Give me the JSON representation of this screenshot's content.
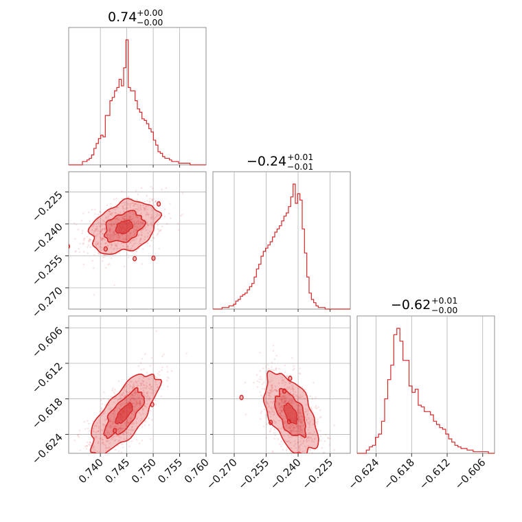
{
  "chart_data": {
    "type": "corner",
    "color": "#d62728",
    "parameters": [
      {
        "title": {
          "value": "0.74",
          "plus": "+0.00",
          "minus": "−0.00"
        },
        "range": [
          0.734,
          0.76
        ],
        "ticks": [
          0.74,
          0.745,
          0.75,
          0.755,
          0.76
        ],
        "tick_labels": [
          "0.740",
          "0.745",
          "0.750",
          "0.755",
          "0.760"
        ],
        "hist_edges": [
          0.734,
          0.76
        ],
        "hist": [
          0,
          0,
          0,
          0,
          0,
          0,
          2,
          2,
          3,
          4,
          6,
          10,
          13,
          16,
          18,
          17,
          30,
          30,
          39,
          41,
          45,
          47,
          52,
          48,
          59,
          76,
          47,
          45,
          45,
          39,
          34,
          32,
          28,
          27,
          25,
          22,
          20,
          15,
          12,
          8,
          7,
          5,
          4,
          4,
          3,
          2,
          2,
          2,
          1,
          1,
          1,
          1,
          1,
          0,
          0,
          0,
          0,
          0,
          0,
          0
        ]
      },
      {
        "title": {
          "value": "−0.24",
          "plus": "+0.01",
          "minus": "−0.01"
        },
        "range": [
          -0.28,
          -0.2155
        ],
        "ticks": [
          -0.27,
          -0.255,
          -0.24,
          -0.225
        ],
        "tick_labels": [
          "−0.270",
          "−0.255",
          "−0.240",
          "−0.225"
        ],
        "hist": [
          0,
          0,
          0,
          0,
          1,
          1,
          1,
          2,
          2,
          3,
          5,
          6,
          8,
          9,
          10,
          12,
          14,
          16,
          20,
          25,
          28,
          33,
          36,
          38,
          40,
          42,
          45,
          48,
          50,
          52,
          55,
          58,
          60,
          64,
          70,
          78,
          66,
          72,
          68,
          50,
          35,
          20,
          10,
          6,
          4,
          2,
          1,
          1,
          1,
          0,
          0,
          0,
          0,
          0,
          0,
          0,
          0,
          0,
          0,
          0
        ]
      },
      {
        "title": {
          "value": "−0.62",
          "plus": "+0.01",
          "minus": "−0.00"
        },
        "range": [
          -0.6272,
          -0.604
        ],
        "ticks": [
          -0.624,
          -0.618,
          -0.612,
          -0.606
        ],
        "tick_labels": [
          "−0.624",
          "−0.618",
          "−0.612",
          "−0.606"
        ],
        "hist": [
          0,
          0,
          0,
          2,
          4,
          5,
          10,
          12,
          20,
          34,
          46,
          55,
          74,
          78,
          70,
          58,
          58,
          42,
          38,
          40,
          30,
          29,
          26,
          26,
          24,
          20,
          18,
          16,
          15,
          12,
          9,
          7,
          5,
          4,
          3,
          3,
          2,
          2,
          1,
          1,
          1,
          1,
          1,
          0,
          0
        ]
      }
    ],
    "pairs": [
      {
        "x_param": 0,
        "y_param": 1,
        "center": [
          0.7445,
          -0.2415
        ],
        "spread": [
          0.0032,
          0.0062
        ],
        "correlation": 0.32
      },
      {
        "x_param": 0,
        "y_param": 2,
        "center": [
          0.7445,
          -0.6205
        ],
        "spread": [
          0.0032,
          0.0034
        ],
        "correlation": 0.72
      },
      {
        "x_param": 1,
        "y_param": 2,
        "center": [
          -0.2435,
          -0.6205
        ],
        "spread": [
          0.0062,
          0.0034
        ],
        "correlation": -0.52
      }
    ],
    "contour_levels": [
      0.39,
      0.86
    ],
    "grid": true
  }
}
